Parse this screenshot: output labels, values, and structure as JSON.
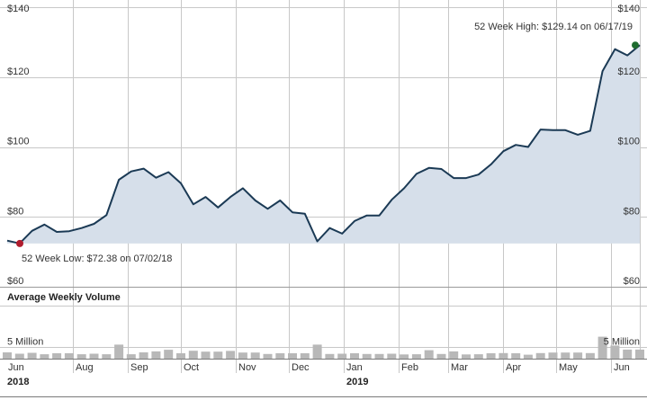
{
  "chart_data": [
    {
      "type": "area",
      "title": "",
      "xlabel": "",
      "ylabel": "",
      "ylim": [
        60,
        140
      ],
      "y_ticks": [
        "$60",
        "$80",
        "$100",
        "$120",
        "$140"
      ],
      "y_tick_values": [
        60,
        80,
        100,
        120,
        140
      ],
      "grid": true,
      "colors": {
        "line": "#1b3a55",
        "fill": "#d6dfea",
        "low_marker": "#b01c2e",
        "high_marker": "#1e6b2e",
        "grid": "#c8c8c8"
      },
      "x": [
        "2018-06-25",
        "2018-07-02",
        "2018-07-09",
        "2018-07-16",
        "2018-07-23",
        "2018-07-30",
        "2018-08-06",
        "2018-08-13",
        "2018-08-20",
        "2018-08-27",
        "2018-09-03",
        "2018-09-10",
        "2018-09-17",
        "2018-09-24",
        "2018-10-01",
        "2018-10-08",
        "2018-10-15",
        "2018-10-22",
        "2018-10-29",
        "2018-11-05",
        "2018-11-12",
        "2018-11-19",
        "2018-11-26",
        "2018-12-03",
        "2018-12-10",
        "2018-12-17",
        "2018-12-24",
        "2018-12-31",
        "2019-01-07",
        "2019-01-14",
        "2019-01-21",
        "2019-01-28",
        "2019-02-04",
        "2019-02-11",
        "2019-02-18",
        "2019-02-25",
        "2019-03-04",
        "2019-03-11",
        "2019-03-18",
        "2019-03-25",
        "2019-04-01",
        "2019-04-08",
        "2019-04-15",
        "2019-04-22",
        "2019-04-29",
        "2019-05-06",
        "2019-05-13",
        "2019-05-20",
        "2019-05-27",
        "2019-06-03",
        "2019-06-10",
        "2019-06-17"
      ],
      "series": [
        {
          "values": [
            73.2,
            72.4,
            76.0,
            77.8,
            75.7,
            75.9,
            76.8,
            78.0,
            80.5,
            90.6,
            93.0,
            93.8,
            91.2,
            92.8,
            89.6,
            83.6,
            85.7,
            82.7,
            85.7,
            88.2,
            84.7,
            82.3,
            84.7,
            81.3,
            80.9,
            73.0,
            76.8,
            75.2,
            78.8,
            80.4,
            80.4,
            84.9,
            88.2,
            92.3,
            94.0,
            93.7,
            91.1,
            91.1,
            92.1,
            95.0,
            98.8,
            100.6,
            100.0,
            105.0,
            104.8,
            104.8,
            103.5,
            104.6,
            121.7,
            128.0,
            126.2,
            129.14
          ]
        }
      ],
      "annotations": [
        {
          "name": "low",
          "x": "2018-07-02",
          "y": 72.38,
          "text": "52 Week Low: $72.38 on 07/02/18"
        },
        {
          "name": "high",
          "x": "2019-06-17",
          "y": 129.14,
          "text": "52 Week High: $129.14 on 06/17/19"
        }
      ]
    },
    {
      "type": "bar",
      "title": "Average Weekly Volume",
      "y_reference": {
        "value": 5,
        "label": "5 Million"
      },
      "units": "Million",
      "ylim": [
        0,
        13.5
      ],
      "color": "#b8b8b8",
      "values": [
        2.7,
        2.1,
        2.5,
        1.9,
        2.3,
        2.3,
        1.9,
        2.1,
        1.9,
        6.0,
        1.9,
        2.7,
        3.1,
        3.8,
        2.3,
        3.4,
        3.0,
        3.0,
        3.3,
        2.6,
        2.6,
        2.0,
        2.3,
        2.3,
        2.3,
        6.0,
        2.0,
        2.1,
        2.3,
        2.0,
        2.0,
        2.1,
        1.8,
        1.9,
        3.6,
        2.0,
        3.1,
        1.8,
        1.9,
        2.3,
        2.4,
        2.3,
        1.7,
        2.4,
        2.6,
        2.6,
        2.6,
        2.4,
        9.4,
        5.6,
        3.9,
        3.9
      ]
    }
  ],
  "x_axis": {
    "months": [
      {
        "label": "Jun",
        "date": "2018-06-25"
      },
      {
        "label": "Aug",
        "date": "2018-08-01"
      },
      {
        "label": "Sep",
        "date": "2018-09-01"
      },
      {
        "label": "Oct",
        "date": "2018-10-01"
      },
      {
        "label": "Nov",
        "date": "2018-11-01"
      },
      {
        "label": "Dec",
        "date": "2018-12-01"
      },
      {
        "label": "Jan",
        "date": "2019-01-01"
      },
      {
        "label": "Feb",
        "date": "2019-02-01"
      },
      {
        "label": "Mar",
        "date": "2019-03-01"
      },
      {
        "label": "Apr",
        "date": "2019-04-01"
      },
      {
        "label": "May",
        "date": "2019-05-01"
      },
      {
        "label": "Jun",
        "date": "2019-06-01"
      }
    ],
    "years": [
      {
        "label": "2018",
        "date": "2018-06-25"
      },
      {
        "label": "2019",
        "date": "2019-01-01"
      }
    ]
  }
}
